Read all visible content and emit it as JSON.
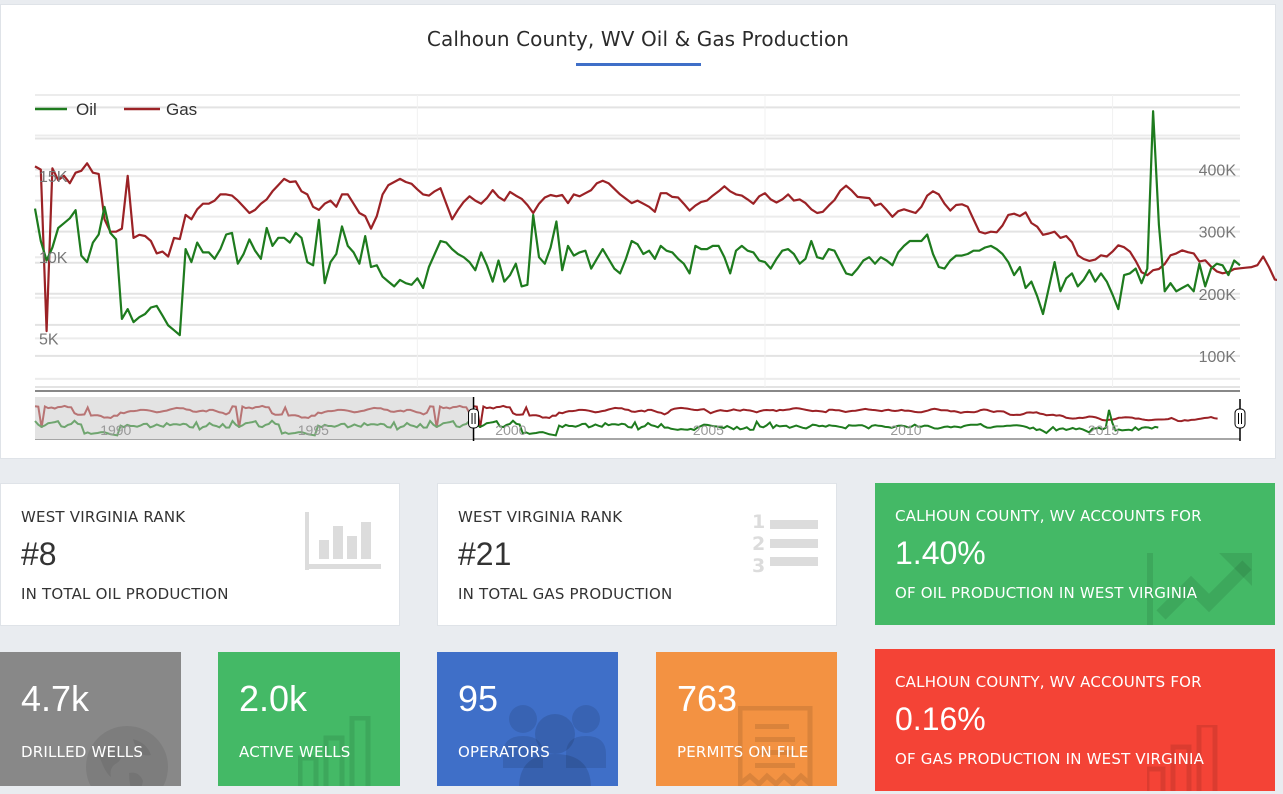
{
  "chart": {
    "title": "Calhoun County, WV Oil & Gas Production",
    "accent_color": "#3f6fc8"
  },
  "chart_data": {
    "type": "line",
    "title": "Calhoun County, WV Oil & Gas Production",
    "legend": [
      "Oil",
      "Gas"
    ],
    "legend_position": "top-left",
    "grid": true,
    "x_start": 1999.5,
    "x_step_months": 1,
    "y_left": {
      "label": "Oil",
      "ticks": [
        "5K",
        "10K",
        "15K"
      ],
      "tick_values": [
        5000,
        10000,
        15000
      ],
      "range": [
        2000,
        20000
      ]
    },
    "y_right": {
      "label": "Gas",
      "ticks": [
        "100K",
        "200K",
        "300K",
        "400K"
      ],
      "tick_values": [
        100000,
        200000,
        300000,
        400000
      ],
      "range": [
        50000,
        520000
      ]
    },
    "navigator": {
      "ticks": [
        "1990",
        "1995",
        "2000",
        "2005",
        "2010",
        "2015"
      ],
      "selected_range": [
        1999.5,
        2018.9
      ]
    },
    "series": [
      {
        "name": "Oil",
        "color": "#1e7b1e",
        "axis": "left",
        "values": [
          13000,
          11000,
          9800,
          10600,
          11800,
          12100,
          12400,
          12900,
          10100,
          9700,
          10900,
          11400,
          13100,
          11500,
          11100,
          6200,
          6800,
          6000,
          6300,
          6500,
          6900,
          7000,
          6400,
          5800,
          5500,
          5200,
          10500,
          9700,
          10900,
          10300,
          10300,
          9900,
          10500,
          11400,
          11500,
          9600,
          10200,
          11100,
          10400,
          9900,
          11800,
          10700,
          11200,
          11200,
          10900,
          11500,
          11200,
          9700,
          9500,
          12300,
          8400,
          9700,
          10200,
          11900,
          10700,
          10300,
          9600,
          11300,
          9400,
          9500,
          8800,
          8500,
          8200,
          8600,
          8400,
          8300,
          8700,
          8100,
          9400,
          10200,
          11000,
          10900,
          10500,
          10200,
          10000,
          9700,
          9200,
          10300,
          9500,
          8500,
          9800,
          8500,
          8900,
          9600,
          8200,
          8300,
          12600,
          10000,
          9600,
          10600,
          12200,
          9200,
          10700,
          10100,
          10300,
          10400,
          9300,
          9900,
          10500,
          9900,
          9300,
          9000,
          9900,
          11000,
          10800,
          10200,
          10400,
          9900,
          10700,
          10400,
          10300,
          9900,
          9600,
          9000,
          10700,
          10500,
          10500,
          10700,
          10700,
          10000,
          9000,
          10400,
          10700,
          10400,
          10300,
          9800,
          9700,
          9300,
          9900,
          10400,
          10500,
          10200,
          9600,
          9900,
          11000,
          10000,
          9900,
          10500,
          10400,
          9700,
          9000,
          8900,
          9300,
          9800,
          10000,
          9600,
          10000,
          9800,
          9500,
          10300,
          10700,
          11000,
          11000,
          11000,
          11400,
          10200,
          9400,
          9300,
          9800,
          10100,
          10100,
          10200,
          10400,
          10400,
          10600,
          10700,
          10500,
          10200,
          9700,
          8900,
          9400,
          8100,
          8500,
          7600,
          6500,
          8100,
          9700,
          7900,
          8700,
          9000,
          8200,
          8600,
          9200,
          8500,
          9000,
          8500,
          7700,
          6800,
          8900,
          9000,
          9300,
          8400,
          9300,
          19000,
          12000,
          7900,
          8400,
          7900,
          8100,
          8300,
          7900,
          9600,
          8200,
          9300,
          9600,
          9500,
          8900,
          9800,
          9500
        ]
      },
      {
        "name": "Gas",
        "color": "#9b2226",
        "axis": "right",
        "values": [
          405000,
          400000,
          140000,
          402000,
          383000,
          390000,
          378000,
          395000,
          398000,
          410000,
          395000,
          393000,
          320000,
          300000,
          300000,
          305000,
          390000,
          290000,
          295000,
          293000,
          285000,
          265000,
          268000,
          260000,
          290000,
          288000,
          327000,
          320000,
          336000,
          345000,
          345000,
          350000,
          360000,
          360000,
          358000,
          350000,
          340000,
          330000,
          335000,
          345000,
          352000,
          365000,
          375000,
          385000,
          380000,
          381000,
          365000,
          360000,
          340000,
          335000,
          345000,
          350000,
          340000,
          360000,
          360000,
          345000,
          330000,
          325000,
          305000,
          325000,
          360000,
          375000,
          380000,
          385000,
          380000,
          377000,
          368000,
          360000,
          358000,
          365000,
          370000,
          345000,
          320000,
          335000,
          348000,
          357000,
          350000,
          345000,
          354000,
          367000,
          356000,
          350000,
          364000,
          358000,
          353000,
          343000,
          330000,
          345000,
          355000,
          359000,
          357000,
          359000,
          346000,
          360000,
          357000,
          362000,
          367000,
          378000,
          382000,
          378000,
          369000,
          360000,
          353000,
          346000,
          350000,
          345000,
          340000,
          332000,
          362000,
          362000,
          356000,
          355000,
          345000,
          334000,
          342000,
          348000,
          350000,
          358000,
          365000,
          373000,
          365000,
          360000,
          358000,
          352000,
          345000,
          357000,
          362000,
          352000,
          347000,
          352000,
          360000,
          350000,
          352000,
          346000,
          336000,
          330000,
          332000,
          342000,
          351000,
          366000,
          374000,
          366000,
          356000,
          355000,
          354000,
          342000,
          345000,
          335000,
          324000,
          333000,
          336000,
          333000,
          330000,
          340000,
          358000,
          365000,
          360000,
          345000,
          334000,
          343000,
          344000,
          340000,
          320000,
          300000,
          297000,
          300000,
          299000,
          310000,
          327000,
          329000,
          325000,
          331000,
          314000,
          308000,
          295000,
          297000,
          300000,
          290000,
          293000,
          283000,
          262000,
          256000,
          253000,
          255000,
          262000,
          260000,
          268000,
          278000,
          275000,
          268000,
          253000,
          235000,
          230000,
          238000,
          240000,
          248000,
          262000,
          265000,
          270000,
          267000,
          265000,
          252000,
          254000,
          244000,
          236000,
          233000,
          235000,
          240000,
          241000,
          242000,
          243000,
          246000,
          260000,
          243000,
          223000,
          221000,
          233000,
          228000,
          236000,
          238000,
          246000,
          252000,
          260000,
          263000,
          272000,
          258000,
          253000
        ]
      }
    ],
    "navigator_series": {
      "oil_relative": "dimmed before selection start",
      "gas_relative": "dimmed before selection start"
    }
  },
  "rank_tiles": [
    {
      "top": "WEST VIRGINIA RANK",
      "big": "#8",
      "bottom": "IN TOTAL OIL PRODUCTION",
      "icon": "bar-chart-icon"
    },
    {
      "top": "WEST VIRGINIA RANK",
      "big": "#21",
      "bottom": "IN TOTAL GAS PRODUCTION",
      "icon": "numbered-list-icon"
    }
  ],
  "share_tiles": [
    {
      "top": "CALHOUN COUNTY, WV ACCOUNTS FOR",
      "big": "1.40%",
      "bottom": "OF OIL PRODUCTION IN WEST VIRGINIA",
      "color": "#44b966",
      "icon": "trend-up-icon"
    },
    {
      "top": "CALHOUN COUNTY, WV ACCOUNTS FOR",
      "big": "0.16%",
      "bottom": "OF GAS PRODUCTION IN WEST VIRGINIA",
      "color": "#f44336",
      "icon": "bar-chart-icon"
    }
  ],
  "stat_tiles": [
    {
      "value": "4.7k",
      "label": "DRILLED WELLS",
      "color": "#888888",
      "icon": "globe-icon"
    },
    {
      "value": "2.0k",
      "label": "ACTIVE WELLS",
      "color": "#44b966",
      "icon": "bar-chart-icon"
    },
    {
      "value": "95",
      "label": "OPERATORS",
      "color": "#3f6fc8",
      "icon": "users-icon"
    },
    {
      "value": "763",
      "label": "PERMITS ON FILE",
      "color": "#f39242",
      "icon": "document-icon"
    }
  ]
}
